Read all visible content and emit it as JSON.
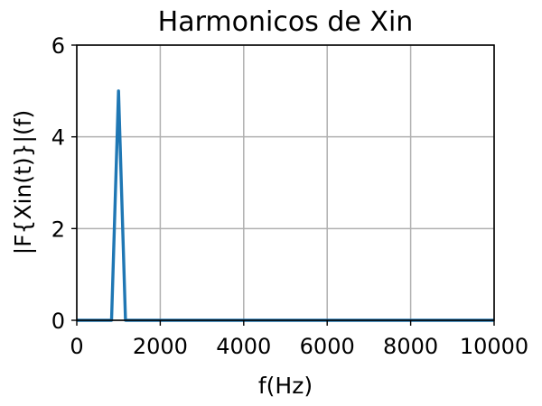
{
  "chart_data": {
    "type": "line",
    "title": "Harmonicos de Xin",
    "xlabel": "f(Hz)",
    "ylabel": "|F{Xin(t)}|(f)",
    "xlim": [
      0,
      10000
    ],
    "ylim": [
      0,
      6
    ],
    "xticks": [
      0,
      2000,
      4000,
      6000,
      8000,
      10000
    ],
    "yticks": [
      0,
      2,
      4,
      6
    ],
    "grid": true,
    "series": [
      {
        "color": "#1f77b4",
        "x": [
          0,
          833,
          1000,
          1167,
          10000
        ],
        "y": [
          0,
          0,
          5,
          0,
          0
        ]
      }
    ]
  }
}
